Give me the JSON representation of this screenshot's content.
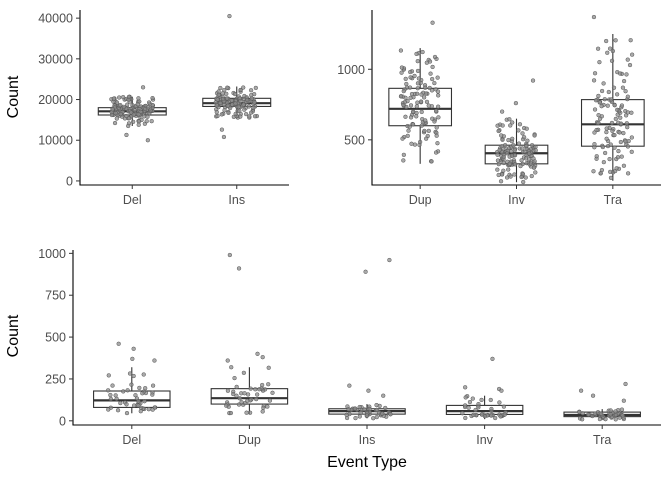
{
  "chart_data": [
    {
      "type": "box",
      "panel": "top-left",
      "ylabel": "Count",
      "xlabel": "",
      "categories": [
        "Del",
        "Ins"
      ],
      "ylim": [
        -1000,
        42000
      ],
      "yticks": [
        0,
        10000,
        20000,
        30000,
        40000
      ],
      "ytick_labels": [
        "0",
        "10000",
        "20000",
        "30000",
        "40000"
      ],
      "grid": false,
      "boxes": [
        {
          "category": "Del",
          "q1": 16200,
          "median": 17100,
          "q3": 18000,
          "whisker_low": 13500,
          "whisker_high": 20700,
          "n_points": 140,
          "outliers": [
            23000,
            10000,
            11300
          ]
        },
        {
          "category": "Ins",
          "q1": 18300,
          "median": 19100,
          "q3": 20300,
          "whisker_low": 15400,
          "whisker_high": 23200,
          "n_points": 140,
          "outliers": [
            40500,
            10800,
            12600
          ]
        }
      ]
    },
    {
      "type": "box",
      "panel": "top-right",
      "ylabel": "",
      "xlabel": "",
      "categories": [
        "Dup",
        "Inv",
        "Tra"
      ],
      "ylim": [
        180,
        1420
      ],
      "yticks": [
        500,
        1000
      ],
      "ytick_labels": [
        "500",
        "1000"
      ],
      "grid": false,
      "boxes": [
        {
          "category": "Dup",
          "q1": 600,
          "median": 720,
          "q3": 865,
          "whisker_low": 330,
          "whisker_high": 1150,
          "n_points": 120,
          "outliers": [
            1330
          ]
        },
        {
          "category": "Inv",
          "q1": 330,
          "median": 405,
          "q3": 462,
          "whisker_low": 200,
          "whisker_high": 650,
          "n_points": 140,
          "outliers": [
            920,
            760,
            700
          ]
        },
        {
          "category": "Tra",
          "q1": 455,
          "median": 610,
          "q3": 785,
          "whisker_low": 210,
          "whisker_high": 1250,
          "n_points": 120,
          "outliers": [
            1370
          ]
        }
      ]
    },
    {
      "type": "box",
      "panel": "bottom",
      "ylabel": "Count",
      "xlabel": "Event Type",
      "categories": [
        "Del",
        "Dup",
        "Ins",
        "Inv",
        "Tra"
      ],
      "ylim": [
        -25,
        1020
      ],
      "yticks": [
        0,
        250,
        500,
        750,
        1000
      ],
      "ytick_labels": [
        "0",
        "250",
        "500",
        "750",
        "1000"
      ],
      "grid": false,
      "boxes": [
        {
          "category": "Del",
          "q1": 80,
          "median": 122,
          "q3": 178,
          "whisker_low": 45,
          "whisker_high": 320,
          "n_points": 45,
          "outliers": [
            460,
            430,
            370,
            360
          ]
        },
        {
          "category": "Dup",
          "q1": 100,
          "median": 135,
          "q3": 192,
          "whisker_low": 40,
          "whisker_high": 320,
          "n_points": 45,
          "outliers": [
            990,
            910,
            400,
            380,
            360
          ]
        },
        {
          "category": "Ins",
          "q1": 40,
          "median": 58,
          "q3": 72,
          "whisker_low": 15,
          "whisker_high": 100,
          "n_points": 45,
          "outliers": [
            960,
            890,
            210,
            180,
            150
          ]
        },
        {
          "category": "Inv",
          "q1": 38,
          "median": 58,
          "q3": 92,
          "whisker_low": 10,
          "whisker_high": 150,
          "n_points": 40,
          "outliers": [
            370,
            200,
            190,
            180
          ]
        },
        {
          "category": "Tra",
          "q1": 25,
          "median": 35,
          "q3": 52,
          "whisker_low": 8,
          "whisker_high": 70,
          "n_points": 40,
          "outliers": [
            220,
            180,
            150,
            120
          ]
        }
      ]
    }
  ],
  "colors": {
    "box_stroke": "#333333",
    "point_fill": "#8c8c8c",
    "point_stroke": "#555555",
    "axis": "#000000",
    "tick_label": "#4d4d4d",
    "background": "#ffffff"
  }
}
